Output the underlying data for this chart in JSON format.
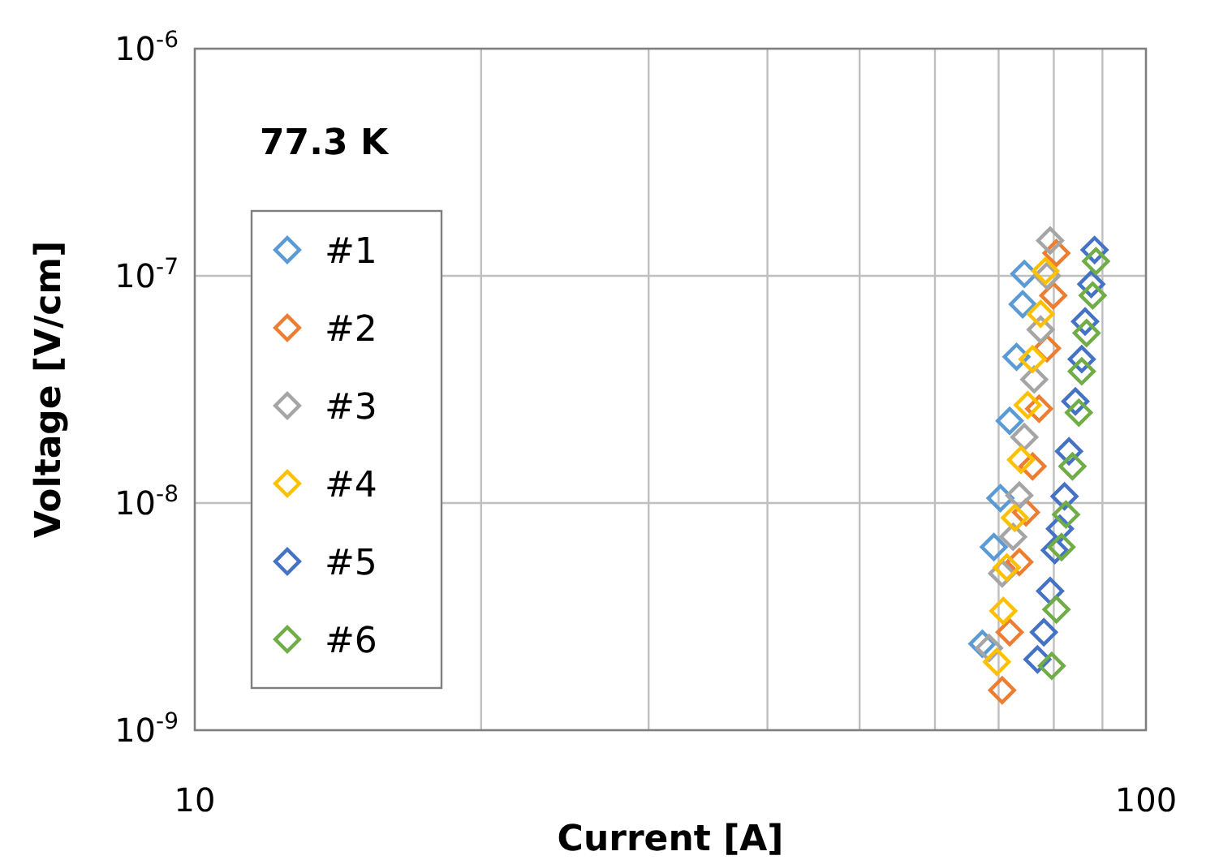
{
  "chart_data": {
    "type": "scatter",
    "xlabel": "Current [A]",
    "ylabel": "Voltage [V/cm]",
    "log": "xy",
    "grid": true,
    "legend": "left",
    "marker": "diamond",
    "annotations": [
      "77.3 K"
    ],
    "xlim": [
      10,
      100
    ],
    "ylim": [
      1e-09,
      1e-06
    ],
    "xticks": [
      10,
      {
        "value": 20,
        "label": null
      },
      {
        "value": 30,
        "label": null
      },
      {
        "value": 40,
        "label": null
      },
      {
        "value": 50,
        "label": null
      },
      {
        "value": 60,
        "label": null
      },
      {
        "value": 70,
        "label": null
      },
      {
        "value": 80,
        "label": null
      },
      {
        "value": 90,
        "label": null
      },
      100
    ],
    "yticks": [
      {
        "value": 1e-09,
        "label": "10$^{-9}$"
      },
      {
        "value": 1e-08,
        "label": "10$^{-8}$"
      },
      {
        "value": 1e-07,
        "label": "10$^{-7}$"
      },
      {
        "value": 1e-06,
        "label": "10$^{-6}$"
      }
    ],
    "series": [
      {
        "name": "#1",
        "color": "#5b9bd5",
        "x": [
          67.3,
          69.2,
          70.3,
          71.9,
          73.1,
          74.2,
          74.5
        ],
        "values": [
          2.4e-09,
          6.4e-09,
          1.05e-08,
          2.3e-08,
          4.4e-08,
          7.5e-08,
          1.02e-07
        ]
      },
      {
        "name": "#2",
        "color": "#ed7d31",
        "x": [
          70.6,
          71.9,
          73.6,
          74.8,
          76,
          77.2,
          78.7,
          79.9,
          80.5
        ],
        "values": [
          1.5e-09,
          2.7e-09,
          5.5e-09,
          9.1e-09,
          1.45e-08,
          2.6e-08,
          4.8e-08,
          8.2e-08,
          1.26e-07
        ]
      },
      {
        "name": "#3",
        "color": "#a5a5a5",
        "x": [
          68.4,
          70.6,
          72.5,
          73.6,
          74.5,
          76.3,
          77.5,
          78.7,
          79.3
        ],
        "values": [
          2.3e-09,
          4.9e-09,
          7.1e-09,
          1.08e-08,
          1.95e-08,
          3.5e-08,
          5.8e-08,
          1e-07,
          1.43e-07
        ]
      },
      {
        "name": "#4",
        "color": "#ffc000",
        "x": [
          69.7,
          70.8,
          71.4,
          72.8,
          73.9,
          75.1,
          76,
          77.5,
          78.4
        ],
        "values": [
          2e-09,
          3.35e-09,
          5.2e-09,
          8.6e-09,
          1.55e-08,
          2.7e-08,
          4.3e-08,
          6.8e-08,
          1.05e-07
        ]
      },
      {
        "name": "#5",
        "color": "#4472c4",
        "x": [
          76.9,
          78.1,
          79.3,
          80.2,
          81.2,
          82.1,
          83,
          84.3,
          85.6,
          86.3,
          87.6,
          88.3
        ],
        "values": [
          2.05e-09,
          2.7e-09,
          4.1e-09,
          6.2e-09,
          7.7e-09,
          1.07e-08,
          1.69e-08,
          2.8e-08,
          4.3e-08,
          6.3e-08,
          9.2e-08,
          1.3e-07
        ]
      },
      {
        "name": "#6",
        "color": "#70ad47",
        "x": [
          79.6,
          80.5,
          81.5,
          82.4,
          83.7,
          85,
          85.6,
          86.6,
          87.9,
          88.6
        ],
        "values": [
          1.92e-09,
          3.4e-09,
          6.4e-09,
          8.9e-09,
          1.45e-08,
          2.5e-08,
          3.8e-08,
          5.6e-08,
          8.2e-08,
          1.16e-07
        ]
      }
    ]
  }
}
